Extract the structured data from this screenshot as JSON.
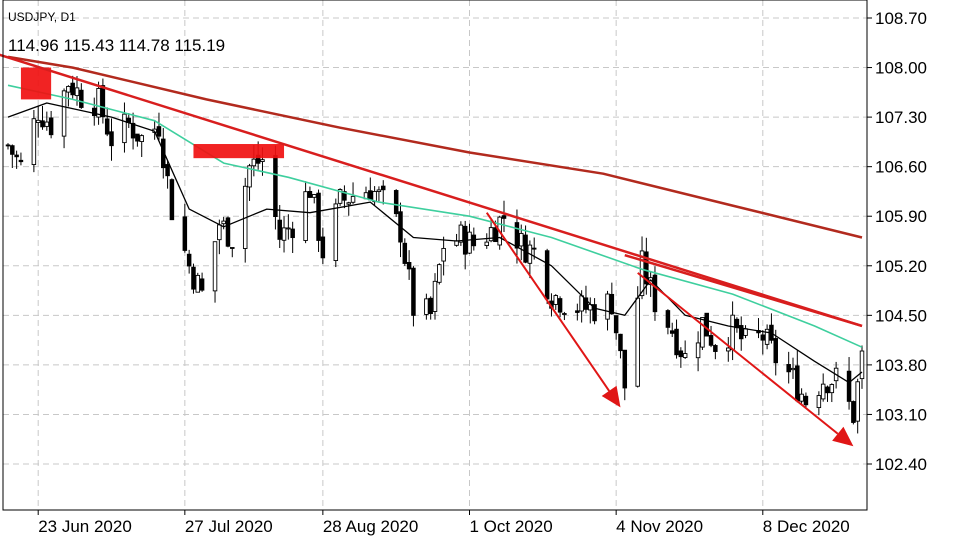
{
  "header": {
    "symbol": "USDJPY, D1",
    "ohlc": "114.96 115.43 114.78 115.19"
  },
  "colors": {
    "background": "#ffffff",
    "grid": "#c8c8c8",
    "candle": "#000000",
    "ma_slow": "#b22a1e",
    "ma_mid": "#3ecf9e",
    "ma_fast": "#000000",
    "trendline": "#d81e1e",
    "arrow": "#e01616",
    "box": "#f01010"
  },
  "chart_data": {
    "type": "candlestick",
    "title": "",
    "xlabel": "",
    "ylabel": "",
    "ylim": [
      101.8,
      109.15
    ],
    "y_ticks": [
      "108.70",
      "108.00",
      "107.30",
      "106.60",
      "105.90",
      "105.20",
      "104.50",
      "103.80",
      "103.10",
      "102.40"
    ],
    "x_ticks": [
      {
        "label": "23 Jun 2020",
        "date": "2020-06-23"
      },
      {
        "label": "27 Jul 2020",
        "date": "2020-07-27"
      },
      {
        "label": "28 Aug 2020",
        "date": "2020-08-28"
      },
      {
        "label": "1 Oct 2020",
        "date": "2020-10-01"
      },
      {
        "label": "4 Nov 2020",
        "date": "2020-11-04"
      },
      {
        "label": "8 Dec 2020",
        "date": "2020-12-08"
      }
    ],
    "x_range": [
      "2020-06-16",
      "2020-12-31"
    ],
    "grid": true,
    "anchors": [
      [
        "2020-06-16",
        106.9
      ],
      [
        "2020-06-19",
        106.6
      ],
      [
        "2020-06-23",
        107.4
      ],
      [
        "2020-06-26",
        107.2
      ],
      [
        "2020-06-30",
        107.8
      ],
      [
        "2020-07-03",
        107.6
      ],
      [
        "2020-07-07",
        107.5
      ],
      [
        "2020-07-10",
        107.0
      ],
      [
        "2020-07-14",
        107.2
      ],
      [
        "2020-07-17",
        107.0
      ],
      [
        "2020-07-21",
        107.2
      ],
      [
        "2020-07-24",
        106.0
      ],
      [
        "2020-07-28",
        105.2
      ],
      [
        "2020-07-31",
        104.8
      ],
      [
        "2020-08-04",
        105.8
      ],
      [
        "2020-08-07",
        105.6
      ],
      [
        "2020-08-11",
        106.6
      ],
      [
        "2020-08-14",
        106.7
      ],
      [
        "2020-08-18",
        105.6
      ],
      [
        "2020-08-21",
        105.8
      ],
      [
        "2020-08-25",
        106.3
      ],
      [
        "2020-08-28",
        105.4
      ],
      [
        "2020-09-01",
        106.1
      ],
      [
        "2020-09-04",
        106.2
      ],
      [
        "2020-09-08",
        106.3
      ],
      [
        "2020-09-11",
        106.1
      ],
      [
        "2020-09-15",
        105.7
      ],
      [
        "2020-09-18",
        104.6
      ],
      [
        "2020-09-22",
        104.5
      ],
      [
        "2020-09-25",
        105.5
      ],
      [
        "2020-09-29",
        105.6
      ],
      [
        "2020-10-02",
        105.5
      ],
      [
        "2020-10-06",
        105.7
      ],
      [
        "2020-10-09",
        105.9
      ],
      [
        "2020-10-13",
        105.5
      ],
      [
        "2020-10-16",
        105.4
      ],
      [
        "2020-10-20",
        104.8
      ],
      [
        "2020-10-23",
        104.7
      ],
      [
        "2020-10-27",
        104.6
      ],
      [
        "2020-10-30",
        104.6
      ],
      [
        "2020-11-03",
        104.7
      ],
      [
        "2020-11-06",
        103.5
      ],
      [
        "2020-11-10",
        105.2
      ],
      [
        "2020-11-13",
        104.7
      ],
      [
        "2020-11-17",
        104.3
      ],
      [
        "2020-11-20",
        103.9
      ],
      [
        "2020-11-24",
        104.4
      ],
      [
        "2020-11-27",
        104.1
      ],
      [
        "2020-12-01",
        104.3
      ],
      [
        "2020-12-04",
        104.1
      ],
      [
        "2020-12-08",
        104.2
      ],
      [
        "2020-12-11",
        103.9
      ],
      [
        "2020-12-15",
        103.6
      ],
      [
        "2020-12-18",
        103.3
      ],
      [
        "2020-12-22",
        103.6
      ],
      [
        "2020-12-25",
        103.6
      ],
      [
        "2020-12-29",
        103.1
      ],
      [
        "2020-12-31",
        103.9
      ]
    ],
    "series": [
      {
        "name": "",
        "kind": "ma_slow",
        "points": [
          [
            "2020-06-16",
            108.15
          ],
          [
            "2020-07-01",
            108.0
          ],
          [
            "2020-08-01",
            107.55
          ],
          [
            "2020-09-01",
            107.15
          ],
          [
            "2020-10-01",
            106.8
          ],
          [
            "2020-11-01",
            106.5
          ],
          [
            "2020-12-01",
            106.05
          ],
          [
            "2020-12-31",
            105.6
          ]
        ]
      },
      {
        "name": "",
        "kind": "ma_mid",
        "points": [
          [
            "2020-06-16",
            107.75
          ],
          [
            "2020-07-01",
            107.55
          ],
          [
            "2020-07-20",
            107.25
          ],
          [
            "2020-08-05",
            106.65
          ],
          [
            "2020-08-20",
            106.45
          ],
          [
            "2020-09-10",
            106.1
          ],
          [
            "2020-10-01",
            105.9
          ],
          [
            "2020-10-20",
            105.6
          ],
          [
            "2020-11-10",
            105.15
          ],
          [
            "2020-12-01",
            104.8
          ],
          [
            "2020-12-20",
            104.35
          ],
          [
            "2020-12-31",
            104.05
          ]
        ]
      },
      {
        "name": "",
        "kind": "ma_fast",
        "points": [
          [
            "2020-06-16",
            107.3
          ],
          [
            "2020-06-25",
            107.5
          ],
          [
            "2020-07-10",
            107.3
          ],
          [
            "2020-07-20",
            107.1
          ],
          [
            "2020-07-28",
            106.0
          ],
          [
            "2020-08-05",
            105.75
          ],
          [
            "2020-08-15",
            106.0
          ],
          [
            "2020-08-25",
            105.95
          ],
          [
            "2020-09-08",
            106.1
          ],
          [
            "2020-09-18",
            105.6
          ],
          [
            "2020-09-28",
            105.55
          ],
          [
            "2020-10-08",
            105.6
          ],
          [
            "2020-10-20",
            105.2
          ],
          [
            "2020-10-30",
            104.6
          ],
          [
            "2020-11-06",
            104.5
          ],
          [
            "2020-11-12",
            105.0
          ],
          [
            "2020-11-20",
            104.5
          ],
          [
            "2020-11-30",
            104.35
          ],
          [
            "2020-12-10",
            104.25
          ],
          [
            "2020-12-20",
            103.85
          ],
          [
            "2020-12-28",
            103.55
          ],
          [
            "2020-12-31",
            103.7
          ]
        ]
      }
    ],
    "trendlines": [
      {
        "from": [
          "2020-06-13",
          108.2
        ],
        "to": [
          "2020-12-31",
          104.35
        ]
      },
      {
        "from": [
          "2020-11-06",
          105.35
        ],
        "to": [
          "2020-12-31",
          104.35
        ]
      }
    ],
    "arrows": [
      {
        "from": [
          "2020-10-05",
          105.95
        ],
        "to": [
          "2020-11-05",
          103.2
        ]
      },
      {
        "from": [
          "2020-11-09",
          105.1
        ],
        "to": [
          "2020-12-29",
          102.65
        ]
      }
    ],
    "boxes": [
      {
        "from": [
          "2020-06-19",
          108.0
        ],
        "to": [
          "2020-06-26",
          107.55
        ]
      },
      {
        "from": [
          "2020-07-29",
          106.92
        ],
        "to": [
          "2020-08-19",
          106.72
        ]
      }
    ]
  }
}
